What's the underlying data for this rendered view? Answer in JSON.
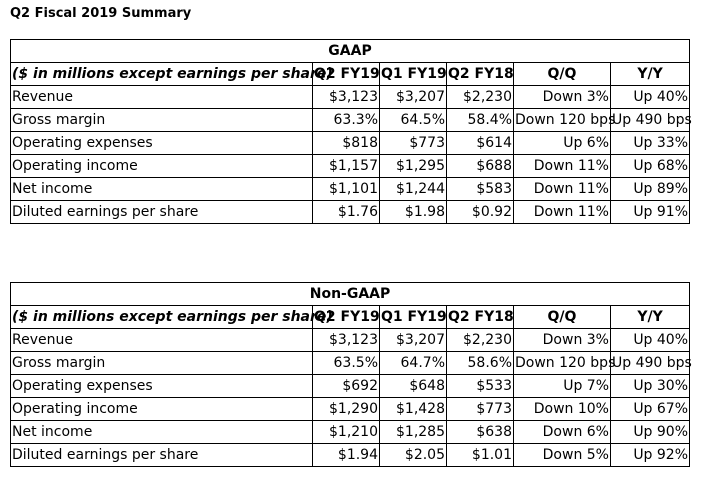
{
  "page_title": "Q2 Fiscal 2019 Summary",
  "tables": [
    {
      "caption": "GAAP",
      "headers": [
        "($ in millions except earnings per share)",
        "Q2 FY19",
        "Q1 FY19",
        "Q2 FY18",
        "Q/Q",
        "Y/Y"
      ],
      "rows": [
        [
          "Revenue",
          "$3,123",
          "$3,207",
          "$2,230",
          "Down 3%",
          "Up 40%"
        ],
        [
          "Gross margin",
          "63.3%",
          "64.5%",
          "58.4%",
          "Down 120 bps",
          "Up 490 bps"
        ],
        [
          "Operating expenses",
          "$818",
          "$773",
          "$614",
          "Up 6%",
          "Up 33%"
        ],
        [
          "Operating income",
          "$1,157",
          "$1,295",
          "$688",
          "Down 11%",
          "Up 68%"
        ],
        [
          "Net income",
          "$1,101",
          "$1,244",
          "$583",
          "Down 11%",
          "Up 89%"
        ],
        [
          "Diluted earnings per share",
          "$1.76",
          "$1.98",
          "$0.92",
          "Down 11%",
          "Up 91%"
        ]
      ]
    },
    {
      "caption": "Non-GAAP",
      "headers": [
        "($ in millions except earnings per share)",
        "Q2 FY19",
        "Q1 FY19",
        "Q2 FY18",
        "Q/Q",
        "Y/Y"
      ],
      "rows": [
        [
          "Revenue",
          "$3,123",
          "$3,207",
          "$2,230",
          "Down 3%",
          "Up 40%"
        ],
        [
          "Gross margin",
          "63.5%",
          "64.7%",
          "58.6%",
          "Down 120 bps",
          "Up 490 bps"
        ],
        [
          "Operating expenses",
          "$692",
          "$648",
          "$533",
          "Up 7%",
          "Up 30%"
        ],
        [
          "Operating income",
          "$1,290",
          "$1,428",
          "$773",
          "Down 10%",
          "Up 67%"
        ],
        [
          "Net income",
          "$1,210",
          "$1,285",
          "$638",
          "Down 6%",
          "Up 90%"
        ],
        [
          "Diluted earnings per share",
          "$1.94",
          "$2.05",
          "$1.01",
          "Down 5%",
          "Up 92%"
        ]
      ]
    }
  ]
}
